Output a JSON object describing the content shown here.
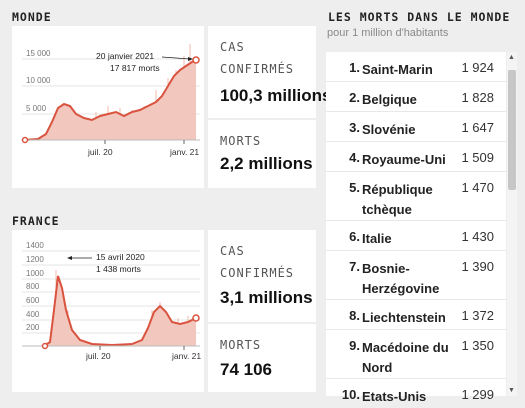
{
  "monde": {
    "title": "MONDE",
    "chart": {
      "yticks": [
        "5 000",
        "10 000",
        "15 000"
      ],
      "xticks": [
        "juil. 20",
        "janv. 21"
      ],
      "annotation_line1": "20 janvier 2021",
      "annotation_line2": "17 817 morts"
    },
    "stat1_label_a": "CAS",
    "stat1_label_b": "CONFIRMÉS",
    "stat1_value": "100,3 millions",
    "stat2_label": "MORTS",
    "stat2_value": "2,2 millions"
  },
  "france": {
    "title": "FRANCE",
    "chart": {
      "yticks": [
        "200",
        "400",
        "600",
        "800",
        "1000",
        "1200",
        "1400"
      ],
      "xticks": [
        "juil. 20",
        "janv. 21"
      ],
      "annotation_line1": "15 avril 2020",
      "annotation_line2": "1 438 morts"
    },
    "stat1_label_a": "CAS",
    "stat1_label_b": "CONFIRMÉS",
    "stat1_value": "3,1 millions",
    "stat2_label": "MORTS",
    "stat2_value": "74 106"
  },
  "ranking": {
    "title": "LES MORTS DANS LE MONDE",
    "subtitle": "pour 1 million d'habitants",
    "rows": [
      {
        "rank": "1.",
        "name": "Saint-Marin",
        "value": "1 924"
      },
      {
        "rank": "2.",
        "name": "Belgique",
        "value": "1 828"
      },
      {
        "rank": "3.",
        "name": "Slovénie",
        "value": "1 647"
      },
      {
        "rank": "4.",
        "name": "Royaume-Uni",
        "value": "1 509"
      },
      {
        "rank": "5.",
        "name": "République tchèque",
        "value": "1 470"
      },
      {
        "rank": "6.",
        "name": "Italie",
        "value": "1 430"
      },
      {
        "rank": "7.",
        "name": "Bosnie-Herzégovine",
        "value": "1 390"
      },
      {
        "rank": "8.",
        "name": "Liechtenstein",
        "value": "1 372"
      },
      {
        "rank": "9.",
        "name": "Macédoine du Nord",
        "value": "1 350"
      },
      {
        "rank": "10.",
        "name": "Etats-Unis",
        "value": "1 299"
      }
    ]
  },
  "colors": {
    "curve": "#d9533f",
    "area": "#f2c7bd",
    "background": "#eeeeee"
  }
}
